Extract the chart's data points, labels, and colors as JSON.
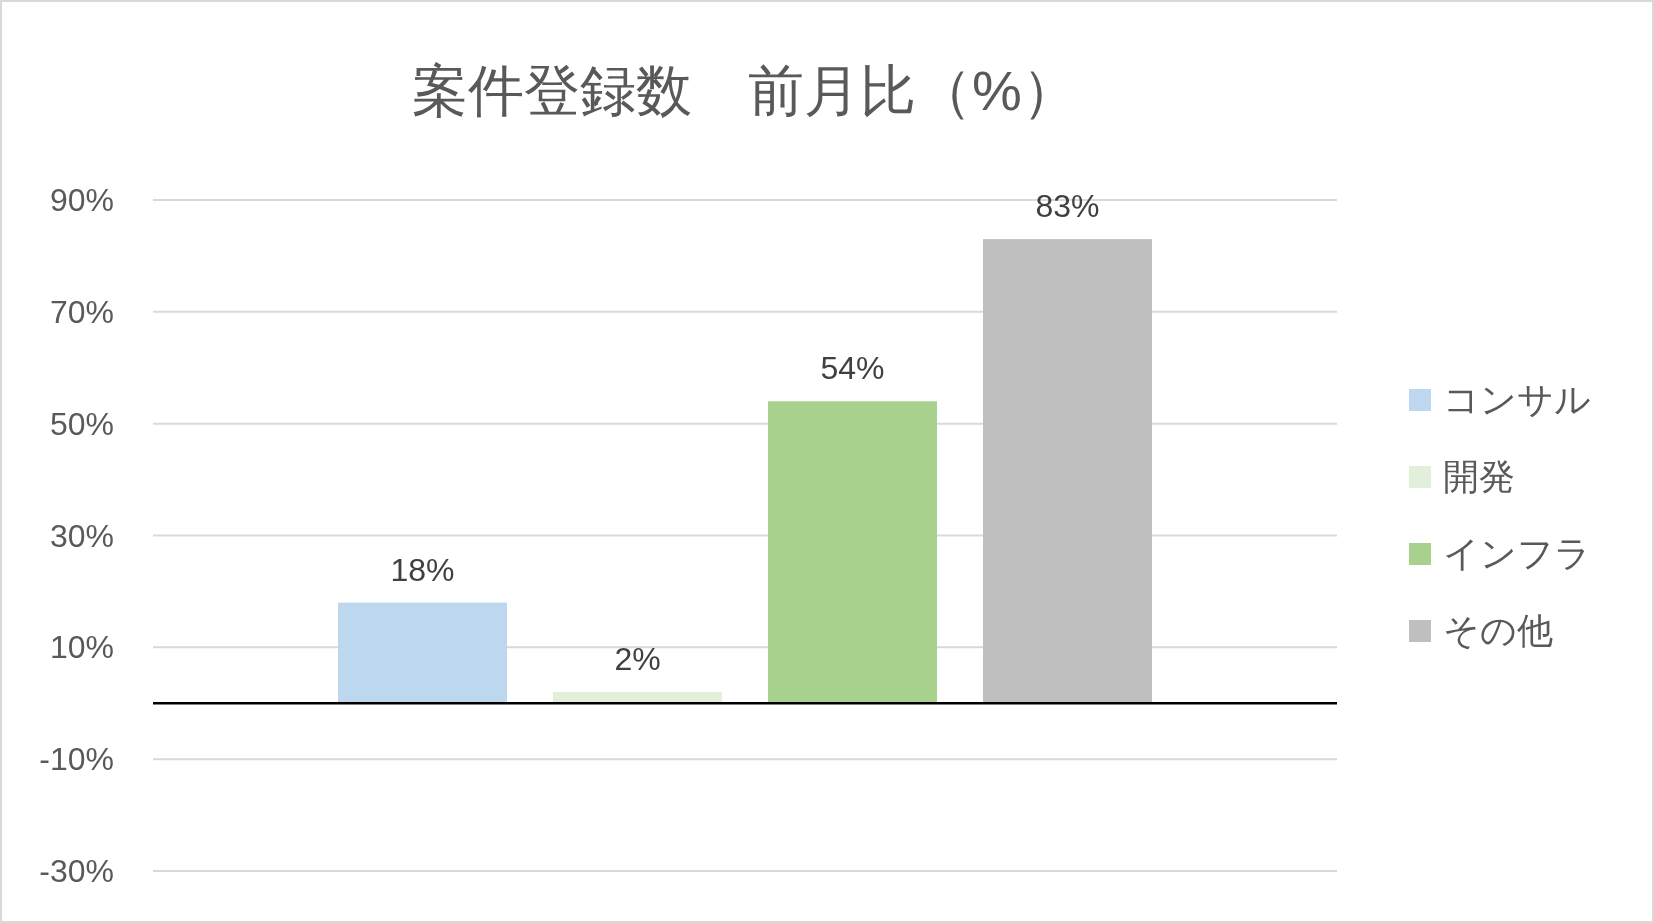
{
  "chart_data": {
    "type": "bar",
    "title": "案件登録数　前月比（%）",
    "categories": [
      null
    ],
    "series": [
      {
        "name": "コンサル",
        "color": "#bdd7ee",
        "values": [
          18
        ],
        "value_labels": [
          "18%"
        ]
      },
      {
        "name": "開発",
        "color": "#e2efda",
        "values": [
          2
        ],
        "value_labels": [
          "2%"
        ]
      },
      {
        "name": "インフラ",
        "color": "#a9d18e",
        "values": [
          54
        ],
        "value_labels": [
          "54%"
        ]
      },
      {
        "name": "その他",
        "color": "#bfbfbf",
        "values": [
          83
        ],
        "value_labels": [
          "83%"
        ]
      }
    ],
    "ylim": [
      -30,
      90
    ],
    "yticks": [
      {
        "value": -30,
        "label": "-30%"
      },
      {
        "value": -10,
        "label": "-10%"
      },
      {
        "value": 10,
        "label": "10%"
      },
      {
        "value": 30,
        "label": "30%"
      },
      {
        "value": 50,
        "label": "50%"
      },
      {
        "value": 70,
        "label": "70%"
      },
      {
        "value": 90,
        "label": "90%"
      }
    ],
    "grid": "y",
    "legend": "right"
  }
}
